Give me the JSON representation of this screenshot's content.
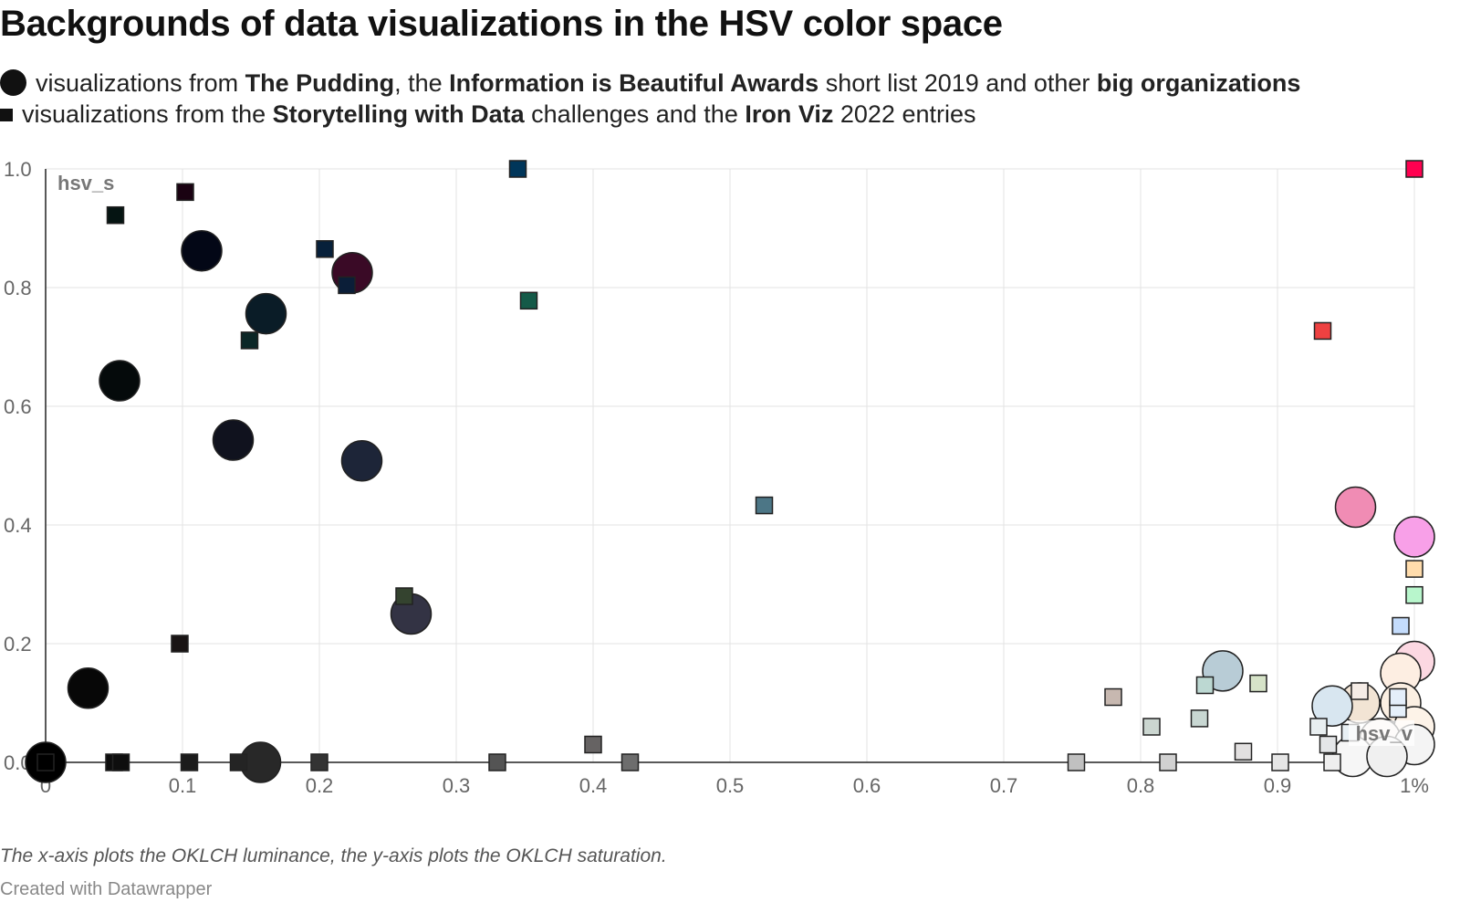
{
  "title": "Backgrounds of data visualizations in the HSV color space",
  "legend": {
    "circle": {
      "t1": "visualizations from ",
      "b1": "The Pudding",
      "t2": ", the ",
      "b2": "Information is Beautiful Awards",
      "t3": " short list 2019 and other ",
      "b3": "big organizations"
    },
    "square": {
      "t1": "visualizations from the ",
      "b1": "Storytelling with Data",
      "t2": " challenges and the ",
      "b2": "Iron Viz",
      "t3": " 2022 entries"
    }
  },
  "footer": {
    "note": "The x-axis plots the OKLCH luminance, the y-axis plots the OKLCH saturation.",
    "credit": "Created with Datawrapper"
  },
  "chart_data": {
    "type": "scatter",
    "x_label": "hsv_v",
    "y_label": "hsv_s",
    "xlim": [
      0,
      1
    ],
    "ylim": [
      0,
      1
    ],
    "x_ticks": [
      {
        "v": 0,
        "label": "0"
      },
      {
        "v": 0.1,
        "label": "0.1"
      },
      {
        "v": 0.2,
        "label": "0.2"
      },
      {
        "v": 0.3,
        "label": "0.3"
      },
      {
        "v": 0.4,
        "label": "0.4"
      },
      {
        "v": 0.5,
        "label": "0.5"
      },
      {
        "v": 0.6,
        "label": "0.6"
      },
      {
        "v": 0.7,
        "label": "0.7"
      },
      {
        "v": 0.8,
        "label": "0.8"
      },
      {
        "v": 0.9,
        "label": "0.9"
      },
      {
        "v": 1,
        "label": "1%"
      }
    ],
    "y_ticks": [
      {
        "v": 0,
        "label": "0.0"
      },
      {
        "v": 0.2,
        "label": "0.2"
      },
      {
        "v": 0.4,
        "label": "0.4"
      },
      {
        "v": 0.6,
        "label": "0.6"
      },
      {
        "v": 0.8,
        "label": "0.8"
      },
      {
        "v": 1,
        "label": "1.0"
      }
    ],
    "grid": true,
    "series": [
      {
        "name": "The Pudding, Information is Beautiful Awards short list 2019 and other big organizations",
        "shape": "circle",
        "points": [
          {
            "x": 0.0,
            "y": 0.0,
            "color": "#000000"
          },
          {
            "x": 0.031,
            "y": 0.125,
            "color": "#070707"
          },
          {
            "x": 0.054,
            "y": 0.643,
            "color": "#050a0b"
          },
          {
            "x": 0.114,
            "y": 0.862,
            "color": "#030716"
          },
          {
            "x": 0.137,
            "y": 0.543,
            "color": "#10121e"
          },
          {
            "x": 0.157,
            "y": 0.0,
            "color": "#282828"
          },
          {
            "x": 0.161,
            "y": 0.756,
            "color": "#0a1c27"
          },
          {
            "x": 0.224,
            "y": 0.825,
            "color": "#3a0a26"
          },
          {
            "x": 0.231,
            "y": 0.508,
            "color": "#1d2538"
          },
          {
            "x": 0.267,
            "y": 0.25,
            "color": "#333344"
          },
          {
            "x": 0.86,
            "y": 0.154,
            "color": "#b8ccd6"
          },
          {
            "x": 0.957,
            "y": 0.43,
            "color": "#f08cb4"
          },
          {
            "x": 1.0,
            "y": 0.38,
            "color": "#f8a0e8"
          },
          {
            "x": 1.0,
            "y": 0.17,
            "color": "#fcd8e2"
          },
          {
            "x": 0.99,
            "y": 0.15,
            "color": "#fdeee2"
          },
          {
            "x": 0.96,
            "y": 0.1,
            "color": "#f2e4d4"
          },
          {
            "x": 0.99,
            "y": 0.1,
            "color": "#fbefe2"
          },
          {
            "x": 0.94,
            "y": 0.095,
            "color": "#d8e6f0"
          },
          {
            "x": 1.0,
            "y": 0.06,
            "color": "#fdf3e8"
          },
          {
            "x": 0.975,
            "y": 0.04,
            "color": "#f5f0ec"
          },
          {
            "x": 1.0,
            "y": 0.03,
            "color": "#f4f4f4"
          },
          {
            "x": 0.955,
            "y": 0.01,
            "color": "#f6f6f6"
          },
          {
            "x": 0.98,
            "y": 0.01,
            "color": "#f0f0f0"
          }
        ]
      },
      {
        "name": "Storytelling with Data challenges and Iron Viz 2022 entries",
        "shape": "square",
        "points": [
          {
            "x": 0.0,
            "y": 0.0,
            "color": "#000000"
          },
          {
            "x": 0.051,
            "y": 0.922,
            "color": "#051412"
          },
          {
            "x": 0.05,
            "y": 0.0,
            "color": "#0d0d0d"
          },
          {
            "x": 0.055,
            "y": 0.0,
            "color": "#0e0e0e"
          },
          {
            "x": 0.098,
            "y": 0.2,
            "color": "#191414"
          },
          {
            "x": 0.102,
            "y": 0.961,
            "color": "#1a0212"
          },
          {
            "x": 0.105,
            "y": 0.0,
            "color": "#1b1b1b"
          },
          {
            "x": 0.141,
            "y": 0.0,
            "color": "#242424"
          },
          {
            "x": 0.149,
            "y": 0.711,
            "color": "#0b2626"
          },
          {
            "x": 0.2,
            "y": 0.0,
            "color": "#333333"
          },
          {
            "x": 0.204,
            "y": 0.865,
            "color": "#07203a"
          },
          {
            "x": 0.22,
            "y": 0.804,
            "color": "#0b1e38"
          },
          {
            "x": 0.262,
            "y": 0.28,
            "color": "#34432f"
          },
          {
            "x": 0.33,
            "y": 0.0,
            "color": "#545454"
          },
          {
            "x": 0.345,
            "y": 1.0,
            "color": "#00365a"
          },
          {
            "x": 0.353,
            "y": 0.778,
            "color": "#145a48"
          },
          {
            "x": 0.4,
            "y": 0.03,
            "color": "#666363"
          },
          {
            "x": 0.427,
            "y": 0.0,
            "color": "#6d6d6d"
          },
          {
            "x": 0.525,
            "y": 0.433,
            "color": "#4c7686"
          },
          {
            "x": 0.753,
            "y": 0.0,
            "color": "#c0c0c0"
          },
          {
            "x": 0.78,
            "y": 0.11,
            "color": "#c7b8b0"
          },
          {
            "x": 0.808,
            "y": 0.06,
            "color": "#cbd6d0"
          },
          {
            "x": 0.82,
            "y": 0.0,
            "color": "#d1d1d1"
          },
          {
            "x": 0.843,
            "y": 0.074,
            "color": "#c8d7d2"
          },
          {
            "x": 0.847,
            "y": 0.13,
            "color": "#bcd8d2"
          },
          {
            "x": 0.875,
            "y": 0.018,
            "color": "#e2e0e0"
          },
          {
            "x": 0.886,
            "y": 0.133,
            "color": "#d6e3c8"
          },
          {
            "x": 0.902,
            "y": 0.0,
            "color": "#e6e6e6"
          },
          {
            "x": 0.933,
            "y": 0.727,
            "color": "#ee4141"
          },
          {
            "x": 0.93,
            "y": 0.06,
            "color": "#e8eef0"
          },
          {
            "x": 0.937,
            "y": 0.03,
            "color": "#e4e6e8"
          },
          {
            "x": 0.94,
            "y": 0.0,
            "color": "#efefef"
          },
          {
            "x": 0.953,
            "y": 0.05,
            "color": "#e8f0f4"
          },
          {
            "x": 0.96,
            "y": 0.12,
            "color": "#f5ece6"
          },
          {
            "x": 0.99,
            "y": 0.23,
            "color": "#c4dcfc"
          },
          {
            "x": 0.988,
            "y": 0.09,
            "color": "#e6f0fa"
          },
          {
            "x": 0.988,
            "y": 0.11,
            "color": "#e4eefa"
          },
          {
            "x": 1.0,
            "y": 1.0,
            "color": "#ff0050"
          },
          {
            "x": 1.0,
            "y": 0.326,
            "color": "#ffdcac"
          },
          {
            "x": 1.0,
            "y": 0.282,
            "color": "#b8f6cc"
          }
        ]
      }
    ]
  }
}
